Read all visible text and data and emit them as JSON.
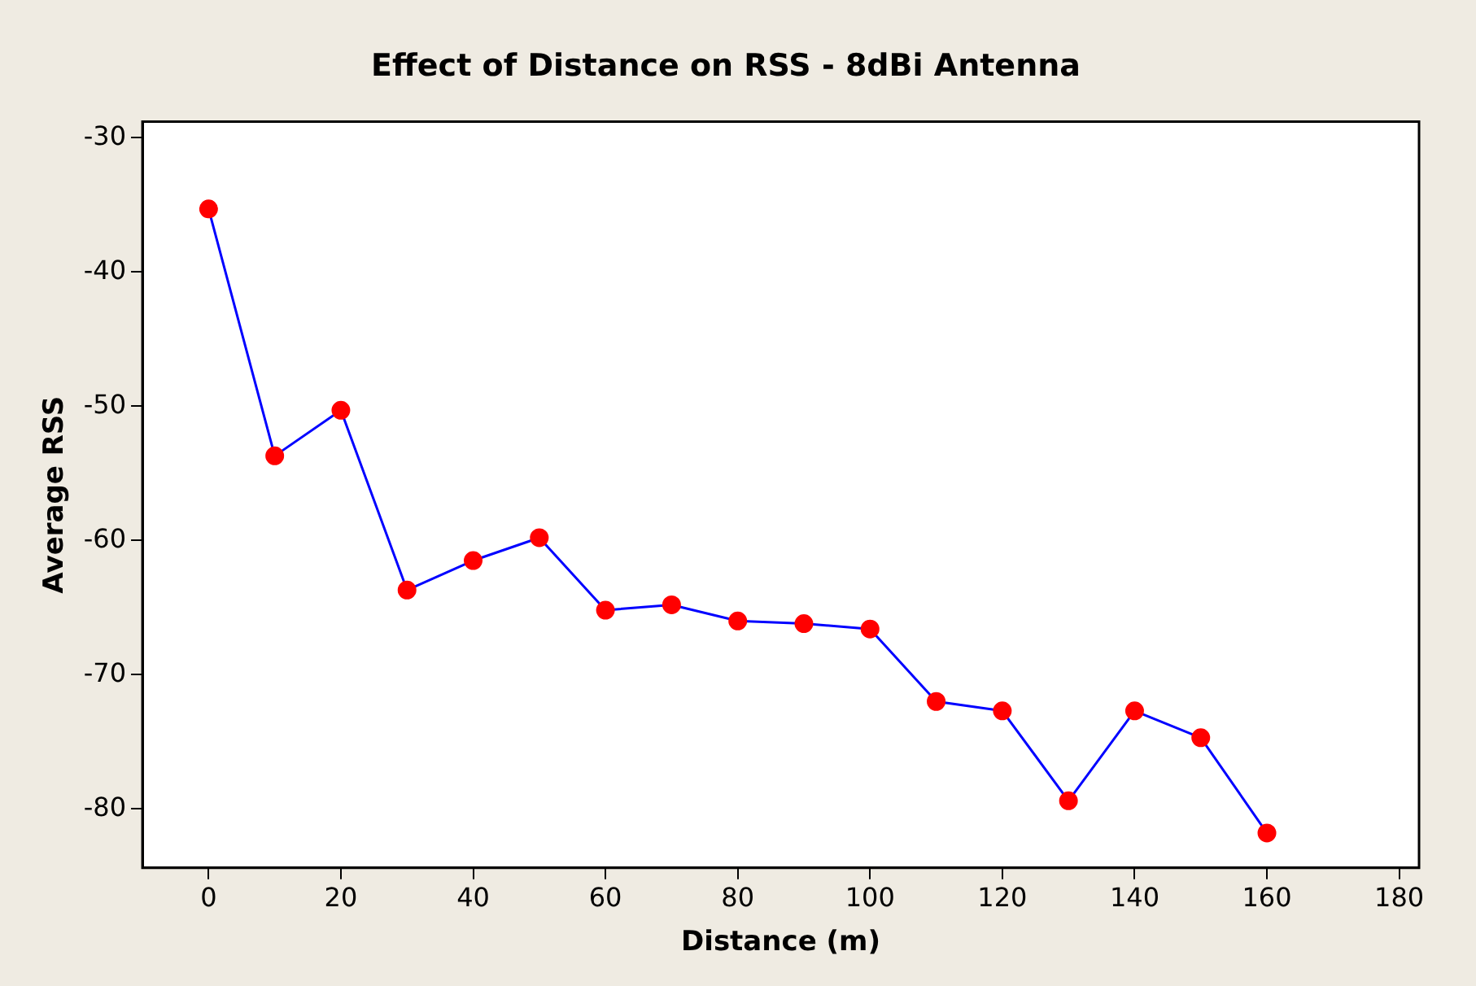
{
  "chart_data": {
    "type": "line",
    "title": "Effect of Distance on RSS - 8dBi Antenna",
    "xlabel": "Distance (m)",
    "ylabel": "Average RSS",
    "x": [
      0,
      10,
      20,
      30,
      40,
      50,
      60,
      70,
      80,
      90,
      100,
      110,
      120,
      130,
      140,
      150,
      160
    ],
    "series": [
      {
        "color": "#0000ff",
        "values": [
          -35.3,
          -53.7,
          -50.3,
          -63.7,
          -61.5,
          -59.8,
          -65.2,
          -64.8,
          -66.0,
          -66.2,
          -66.6,
          -72.0,
          -72.7,
          -79.4,
          -72.7,
          -74.7,
          -81.8
        ]
      }
    ],
    "xlim": [
      -10,
      183
    ],
    "xticks": [
      0,
      20,
      40,
      60,
      80,
      100,
      120,
      140,
      160,
      180
    ],
    "ylim": [
      -84.4,
      -28.8
    ],
    "yticks": [
      -80,
      -70,
      -60,
      -50,
      -40,
      -30
    ],
    "marker": "circle",
    "line_style": "solid",
    "grid": false,
    "legend": false
  }
}
